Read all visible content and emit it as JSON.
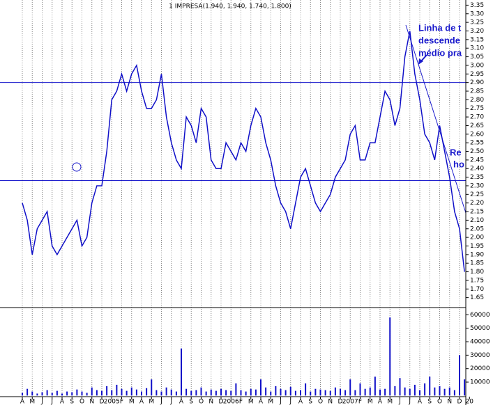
{
  "chart_data": [
    {
      "type": "line",
      "title": "1 IMPRESA(1.940, 1.940, 1.740, 1.800)",
      "categories": [
        "A",
        null,
        "M",
        null,
        "J",
        null,
        "J",
        null,
        "A",
        null,
        "S",
        null,
        "O",
        null,
        "N",
        null,
        "D",
        null,
        "2005",
        null,
        "F",
        null,
        "M",
        null,
        "A",
        null,
        "M",
        null,
        "J",
        null,
        "J",
        null,
        "A",
        null,
        "S",
        null,
        "O",
        null,
        "N",
        null,
        "D",
        null,
        "2006",
        null,
        "F",
        null,
        "M",
        null,
        "A",
        null,
        "M",
        null,
        "J",
        null,
        "J",
        null,
        "A",
        null,
        "S",
        null,
        "O",
        null,
        "N",
        null,
        "D",
        null,
        "2007",
        null,
        "F",
        null,
        "M",
        null,
        "A",
        null,
        "M",
        null,
        "J",
        null,
        "J",
        null,
        "A",
        null,
        "S",
        null,
        "O",
        null,
        "N",
        null,
        "D",
        null,
        "20",
        null
      ],
      "series": [
        {
          "color": "#1010c8",
          "values": [
            2.2,
            2.1,
            1.9,
            2.05,
            2.1,
            2.15,
            1.95,
            1.9,
            1.95,
            2.0,
            2.05,
            2.1,
            1.95,
            2.0,
            2.2,
            2.3,
            2.3,
            2.5,
            2.8,
            2.85,
            2.95,
            2.85,
            2.95,
            3.0,
            2.85,
            2.75,
            2.75,
            2.8,
            2.95,
            2.7,
            2.55,
            2.45,
            2.4,
            2.7,
            2.65,
            2.55,
            2.75,
            2.7,
            2.45,
            2.4,
            2.4,
            2.55,
            2.5,
            2.45,
            2.55,
            2.5,
            2.65,
            2.75,
            2.7,
            2.55,
            2.45,
            2.3,
            2.2,
            2.15,
            2.05,
            2.2,
            2.35,
            2.4,
            2.3,
            2.2,
            2.15,
            2.2,
            2.25,
            2.35,
            2.4,
            2.45,
            2.6,
            2.65,
            2.45,
            2.45,
            2.55,
            2.55,
            2.7,
            2.85,
            2.8,
            2.65,
            2.75,
            3.05,
            3.2,
            2.95,
            2.8,
            2.6,
            2.55,
            2.45,
            2.65,
            2.5,
            2.35,
            2.15,
            2.05,
            1.8,
            null,
            null
          ]
        }
      ],
      "hlines": [
        2.9,
        2.33
      ],
      "annotations": [
        "Linha de t",
        "descende",
        "médio pra",
        "Re",
        "ho"
      ],
      "ylim": [
        1.6,
        3.38
      ],
      "yticks": [
        3.35,
        {
          "value": 3.3,
          "label": "3.30"
        },
        3.25,
        {
          "value": 3.2,
          "label": "3.20"
        },
        3.15,
        {
          "value": 3.1,
          "label": "3.10"
        },
        3.05,
        {
          "value": 3,
          "label": "3.00"
        },
        2.95,
        {
          "value": 2.9,
          "label": "2.90"
        },
        2.85,
        {
          "value": 2.8,
          "label": "2.80"
        },
        2.75,
        {
          "value": 2.7,
          "label": "2.70"
        },
        2.65,
        {
          "value": 2.6,
          "label": "2.60"
        },
        2.55,
        {
          "value": 2.5,
          "label": "2.50"
        },
        2.45,
        {
          "value": 2.4,
          "label": "2.40"
        },
        2.35,
        {
          "value": 2.3,
          "label": "2.30"
        },
        2.25,
        {
          "value": 2.2,
          "label": "2.20"
        },
        2.15,
        {
          "value": 2.1,
          "label": "2.10"
        },
        2.05,
        {
          "value": 2,
          "label": "2.00"
        },
        1.95,
        {
          "value": 1.9,
          "label": "1.90"
        },
        1.85,
        {
          "value": 1.8,
          "label": "1.80"
        },
        1.75,
        {
          "value": 1.7,
          "label": "1.70"
        },
        1.65
      ],
      "grid": true
    },
    {
      "type": "bar",
      "series": [
        {
          "color": "#1010c8",
          "values": [
            2000,
            5000,
            3000,
            1500,
            2500,
            4000,
            2000,
            3500,
            1500,
            3000,
            2500,
            4500,
            3000,
            2000,
            6000,
            4000,
            3500,
            7000,
            4000,
            8000,
            5000,
            3500,
            6000,
            4500,
            3000,
            5500,
            12000,
            4000,
            3000,
            6000,
            4500,
            3000,
            35000,
            5000,
            3500,
            4000,
            6000,
            3000,
            4500,
            3500,
            5000,
            4000,
            3500,
            9000,
            4000,
            3000,
            5000,
            4500,
            12000,
            6000,
            3000,
            7000,
            5000,
            4000,
            6500,
            3500,
            4000,
            9000,
            3000,
            5000,
            4500,
            4000,
            3500,
            6000,
            5000,
            4000,
            12000,
            4000,
            9000,
            5000,
            6000,
            14000,
            4500,
            5000,
            58000,
            7000,
            13000,
            6000,
            5000,
            8000,
            4000,
            9000,
            14000,
            6000,
            7000,
            5000,
            6000,
            4000,
            30000,
            12000,
            null,
            null
          ]
        }
      ],
      "ylim": [
        0,
        65000
      ],
      "yticks": [
        60000,
        50000,
        40000,
        30000,
        20000,
        10000
      ]
    }
  ]
}
